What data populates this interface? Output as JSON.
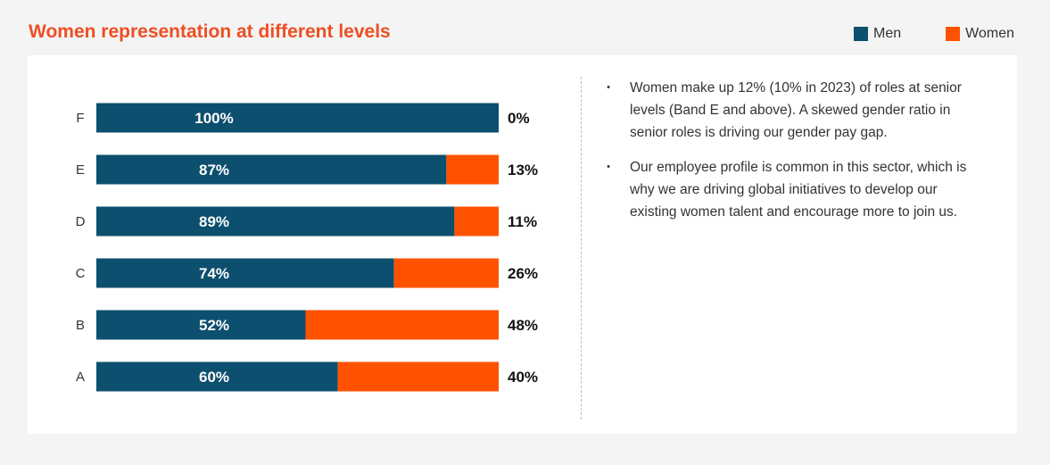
{
  "title": "Women representation at different levels",
  "legend": [
    {
      "label": "Men",
      "color": "#0d4f6e"
    },
    {
      "label": "Women",
      "color": "#ff5200"
    }
  ],
  "chart_data": {
    "type": "bar",
    "orientation": "horizontal",
    "stacked": true,
    "percent": true,
    "title": "Women representation at different levels",
    "categories": [
      "F",
      "E",
      "D",
      "C",
      "B",
      "A"
    ],
    "series": [
      {
        "name": "Men",
        "color": "#0d4f6e",
        "values": [
          100,
          87,
          89,
          74,
          52,
          60
        ]
      },
      {
        "name": "Women",
        "color": "#ff5200",
        "values": [
          0,
          13,
          11,
          26,
          48,
          40
        ]
      }
    ],
    "data_labels": {
      "Men": [
        "100%",
        "87%",
        "89%",
        "74%",
        "52%",
        "60%"
      ],
      "Women": [
        "0%",
        "13%",
        "11%",
        "26%",
        "48%",
        "40%"
      ]
    },
    "xlim": [
      0,
      100
    ],
    "grid": false,
    "legend_position": "top-right"
  },
  "notes": [
    {
      "bullet": "•",
      "text": "Women make up 12% (10% in 2023) of roles at senior levels (Band E and above). A skewed gender ratio in senior roles is driving our gender pay gap."
    },
    {
      "bullet": "•",
      "text": "Our employee profile is common in this sector, which is why we are driving global initiatives to develop our existing women talent and encourage more to join us."
    }
  ]
}
